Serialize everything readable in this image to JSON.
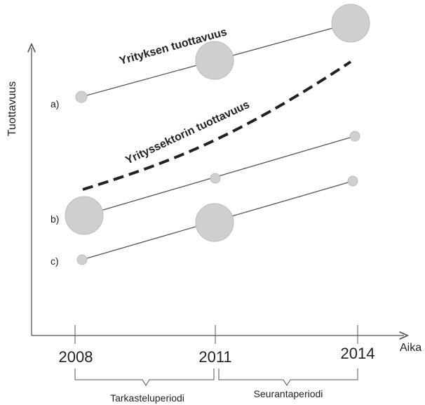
{
  "y_axis_label": "Tuottavuus",
  "x_axis_label": "Aika",
  "years": [
    "2008",
    "2011",
    "2014"
  ],
  "periods": [
    "Tarkasteluperiodi",
    "Seurantaperiodi"
  ],
  "company_label": "Yrityksen tuottavuus",
  "sector_label": "Yrityssektorin tuottavuus",
  "scenarios": [
    {
      "label": "a)",
      "circle_sizes": [
        "small",
        "large",
        "large"
      ]
    },
    {
      "label": "b)",
      "circle_sizes": [
        "large",
        "small",
        "small"
      ]
    },
    {
      "label": "c)",
      "circle_sizes": [
        "small",
        "large",
        "small"
      ]
    }
  ],
  "colors": {
    "circle_fill": "#cfcfcf",
    "circle_stroke": "#bdbdbd",
    "line": "#555555",
    "dashed": "#222222"
  }
}
